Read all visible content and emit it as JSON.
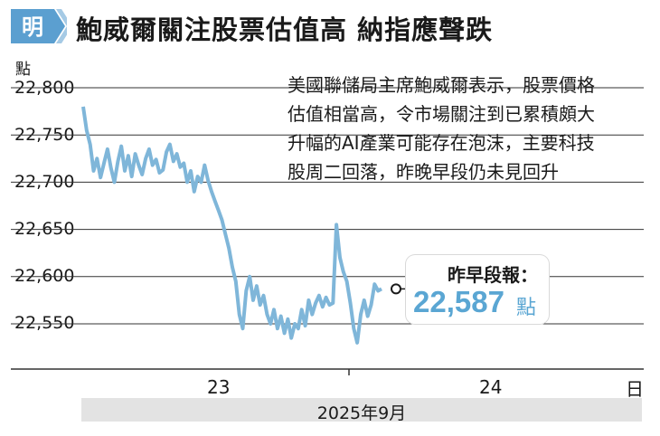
{
  "header": {
    "logo_text": "明",
    "title": "鮑威爾關注股票估值高 納指應聲跌"
  },
  "chart_data": {
    "type": "line",
    "title": "鮑威爾關注股票估值高 納指應聲跌",
    "ylabel": "點",
    "xlabel": "日",
    "ylim": [
      22525,
      22810
    ],
    "yticks": [
      "22,800",
      "22,750",
      "22,700",
      "22,650",
      "22,600",
      "22,550"
    ],
    "ytick_values": [
      22800,
      22750,
      22700,
      22650,
      22600,
      22550
    ],
    "xticks": [
      "23",
      "24"
    ],
    "x_unit": "日",
    "month_label": "2025年9月",
    "grid": true,
    "line_color": "#7fb6d9",
    "series": [
      {
        "values": [
          22780,
          22755,
          22740,
          22712,
          22725,
          22705,
          22720,
          22735,
          22715,
          22700,
          22722,
          22738,
          22712,
          22728,
          22706,
          22730,
          22718,
          22708,
          22725,
          22735,
          22718,
          22724,
          22710,
          22713,
          22732,
          22740,
          22722,
          22730,
          22716,
          22720,
          22700,
          22712,
          22690,
          22706,
          22700,
          22718,
          22702,
          22690,
          22680,
          22670,
          22660,
          22645,
          22630,
          22610,
          22595,
          22560,
          22545,
          22585,
          22600,
          22575,
          22590,
          22570,
          22580,
          22560,
          22550,
          22565,
          22545,
          22558,
          22540,
          22555,
          22535,
          22550,
          22545,
          22565,
          22548,
          22575,
          22560,
          22572,
          22580,
          22568,
          22578,
          22570,
          22572,
          22655,
          22620,
          22605,
          22595,
          22572,
          22545,
          22530,
          22560,
          22575,
          22558,
          22570,
          22592,
          22585,
          22587
        ]
      }
    ],
    "last_value_label": "昨早段報：",
    "last_value": "22,587",
    "last_value_unit": "點",
    "annotation": [
      "美國聯儲局主席鮑威爾表示，股票價格",
      "估值相當高，令市場關注到已累積頗大",
      "升幅的AI產業可能存在泡沫，主要科技",
      "股周二回落，昨晚早段仍未見回升"
    ]
  },
  "colors": {
    "accent": "#5aa6d3",
    "line": "#7fb6d9",
    "logo": "#5b9fd0",
    "grid": "#333333",
    "month_bar": "#e3e3e3"
  }
}
